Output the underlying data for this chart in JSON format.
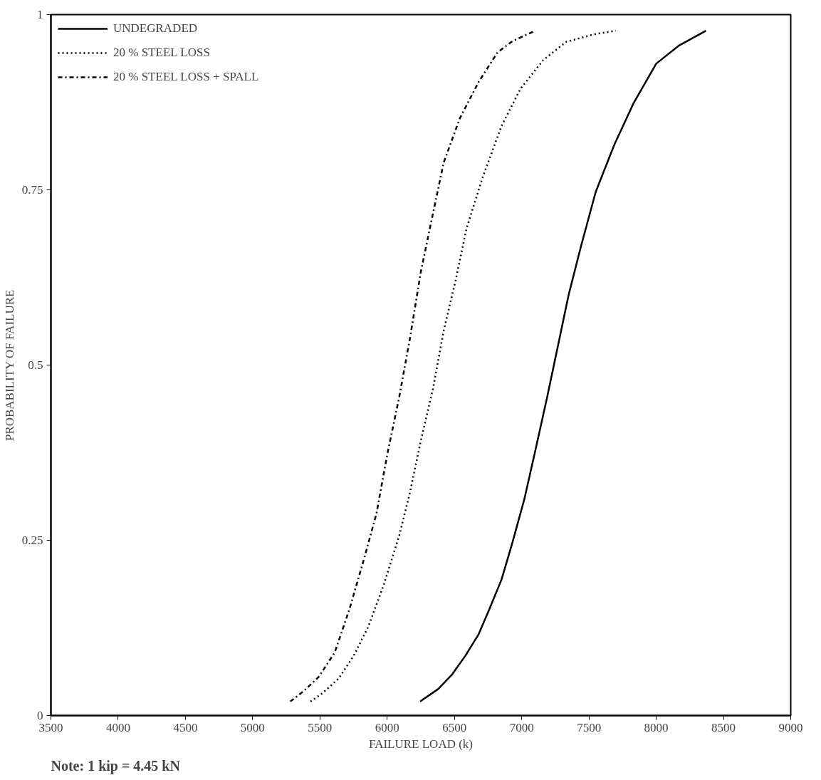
{
  "chart_data": {
    "type": "line",
    "xlabel": "FAILURE LOAD (k)",
    "ylabel": "PROBABILITY OF FAILURE",
    "xlim": [
      3500,
      9000
    ],
    "ylim": [
      0,
      1
    ],
    "xticks": [
      3500,
      4000,
      4500,
      5000,
      5500,
      6000,
      6500,
      7000,
      7500,
      8000,
      8500,
      9000
    ],
    "yticks": [
      0,
      0.25,
      0.5,
      0.75,
      1
    ],
    "grid": false,
    "legend": "top left",
    "marker": "none",
    "annotations": [
      "Note: 1 kip = 4.45 kN"
    ],
    "series": [
      {
        "name": "UNDEGRADED",
        "color": "#000000",
        "line_style": "solid",
        "x": [
          6245,
          6380,
          6480,
          6580,
          6680,
          6760,
          6850,
          6930,
          7020,
          7100,
          7190,
          7270,
          7350,
          7440,
          7550,
          7690,
          7830,
          8000,
          8170,
          8370
        ],
        "values": [
          0.02,
          0.038,
          0.058,
          0.085,
          0.116,
          0.152,
          0.194,
          0.246,
          0.309,
          0.377,
          0.455,
          0.528,
          0.601,
          0.669,
          0.747,
          0.815,
          0.873,
          0.93,
          0.956,
          0.977
        ]
      },
      {
        "name": "20 % STEEL LOSS",
        "color": "#000000",
        "line_style": "dotted",
        "x": [
          5430,
          5520,
          5640,
          5750,
          5860,
          5970,
          6090,
          6170,
          6250,
          6340,
          6420,
          6510,
          6590,
          6710,
          6850,
          6990,
          7160,
          7330,
          7540,
          7700
        ],
        "values": [
          0.02,
          0.032,
          0.053,
          0.085,
          0.127,
          0.184,
          0.257,
          0.319,
          0.392,
          0.466,
          0.549,
          0.622,
          0.695,
          0.768,
          0.841,
          0.894,
          0.935,
          0.961,
          0.972,
          0.977
        ]
      },
      {
        "name": "20 % STEEL LOSS + SPALL",
        "color": "#000000",
        "line_style": "dashdot",
        "x": [
          5280,
          5380,
          5490,
          5610,
          5720,
          5830,
          5920,
          6000,
          6090,
          6170,
          6250,
          6340,
          6420,
          6540,
          6680,
          6820,
          6930,
          7100
        ],
        "values": [
          0.02,
          0.035,
          0.055,
          0.09,
          0.152,
          0.225,
          0.288,
          0.372,
          0.455,
          0.539,
          0.633,
          0.716,
          0.789,
          0.852,
          0.904,
          0.946,
          0.962,
          0.977
        ]
      }
    ]
  }
}
